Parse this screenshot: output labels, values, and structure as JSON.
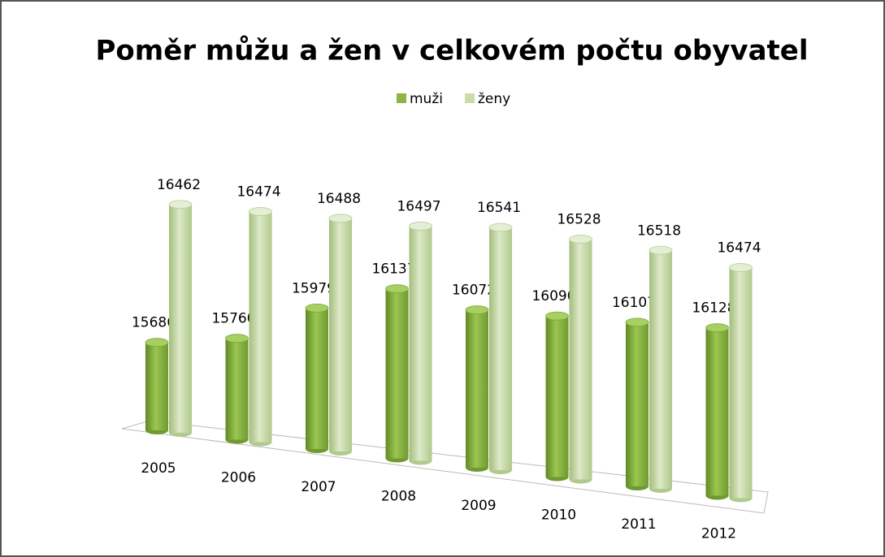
{
  "chart_data": {
    "type": "bar3d",
    "title": "Poměr můžu a žen v celkovém počtu obyvatel",
    "categories": [
      "2005",
      "2006",
      "2007",
      "2008",
      "2009",
      "2010",
      "2011",
      "2012"
    ],
    "series": [
      {
        "name": "muži",
        "color": "#8cb542",
        "values": [
          15686,
          15760,
          15979,
          16137,
          16072,
          16090,
          16107,
          16128
        ]
      },
      {
        "name": "ženy",
        "color": "#c9dca9",
        "values": [
          16462,
          16474,
          16488,
          16497,
          16541,
          16528,
          16518,
          16474
        ]
      }
    ],
    "ylim": [
      15200,
      16600
    ],
    "legend": "top"
  }
}
